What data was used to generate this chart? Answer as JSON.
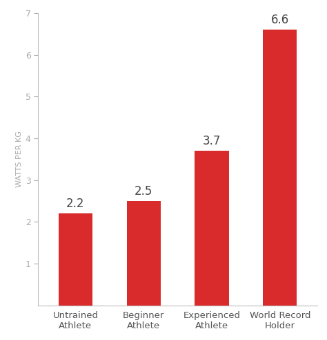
{
  "categories": [
    "Untrained\nAthlete",
    "Beginner\nAthlete",
    "Experienced\nAthlete",
    "World Record\nHolder"
  ],
  "values": [
    2.2,
    2.5,
    3.7,
    6.6
  ],
  "bar_color": "#d92b2b",
  "ylabel": "WATTS PER KG",
  "ylim": [
    0,
    7
  ],
  "yticks": [
    1,
    2,
    3,
    4,
    5,
    6,
    7
  ],
  "value_label_fontsize": 12,
  "ylabel_fontsize": 8,
  "tick_label_fontsize": 9,
  "xtick_label_fontsize": 9.5,
  "background_color": "#ffffff",
  "bar_width": 0.5,
  "value_label_color": "#444444",
  "tick_color": "#aaaaaa",
  "ylabel_color": "#aaaaaa",
  "xtick_color": "#555555",
  "axis_line_color": "#bbbbbb"
}
